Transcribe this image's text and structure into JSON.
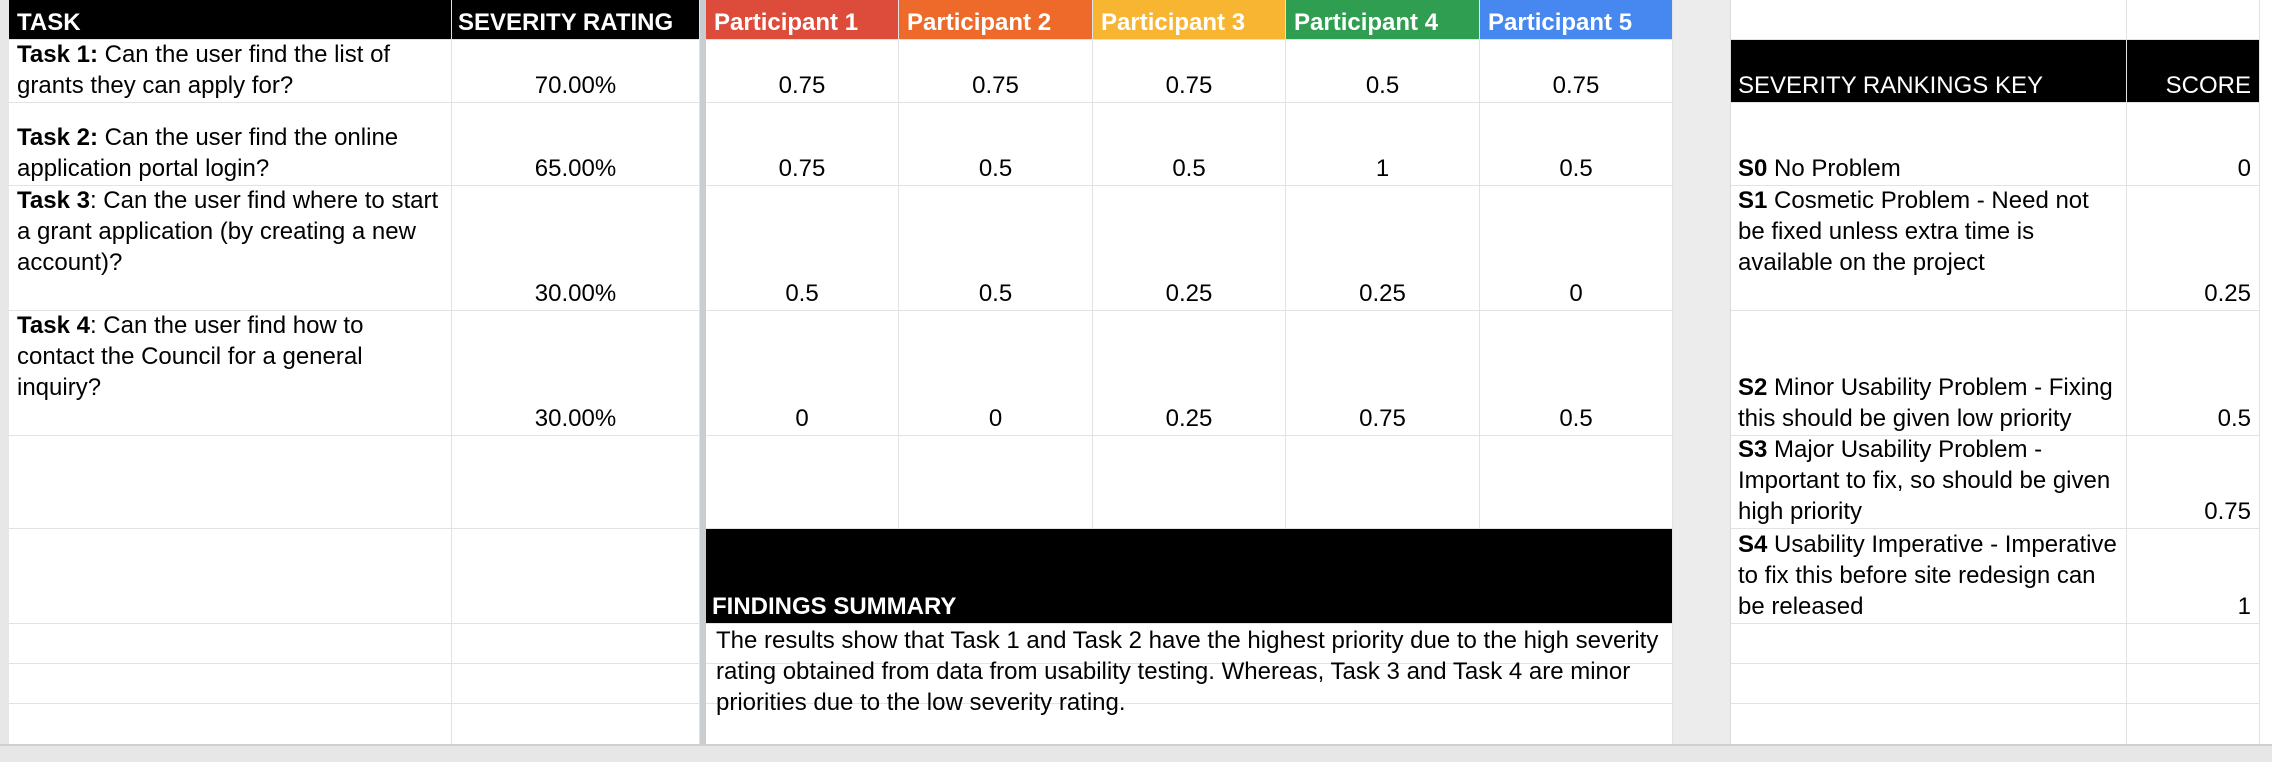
{
  "header": {
    "task": "TASK",
    "severity_rating": "SEVERITY RATING",
    "participants": [
      "Participant 1",
      "Participant 2",
      "Participant 3",
      "Participant 4",
      "Participant 5"
    ],
    "participant_colors": [
      "#dd4b3a",
      "#ee6a2b",
      "#f7b532",
      "#2f9e51",
      "#4787f0"
    ]
  },
  "tasks": [
    {
      "label": "Task 1:",
      "text": " Can the user find the list of grants they can apply for?",
      "rating": "70.00%",
      "scores": [
        "0.75",
        "0.75",
        "0.75",
        "0.5",
        "0.75"
      ]
    },
    {
      "label": "Task 2:",
      "text": " Can the user find the online application portal login?",
      "rating": "65.00%",
      "scores": [
        "0.75",
        "0.5",
        "0.5",
        "1",
        "0.5"
      ]
    },
    {
      "label": "Task 3",
      "text": ": Can the user find where to start a grant application (by creating a new account)?",
      "rating": "30.00%",
      "scores": [
        "0.5",
        "0.5",
        "0.25",
        "0.25",
        "0"
      ]
    },
    {
      "label": "Task 4",
      "text": ": Can the user find how to contact the Council for a general inquiry?",
      "rating": "30.00%",
      "scores": [
        "0",
        "0",
        "0.25",
        "0.75",
        "0.5"
      ]
    }
  ],
  "key": {
    "title": "SEVERITY RANKINGS KEY",
    "score_header": "SCORE",
    "rows": [
      {
        "code": "S0",
        "text": " No Problem",
        "score": "0"
      },
      {
        "code": "S1",
        "text": " Cosmetic Problem - Need not be fixed unless extra time is available on the project",
        "score": "0.25"
      },
      {
        "code": "S2",
        "text": " Minor Usability Problem - Fixing this should be given low priority",
        "score": "0.5"
      },
      {
        "code": "S3",
        "text": " Major Usability Problem - Important to fix, so should be given high priority",
        "score": "0.75"
      },
      {
        "code": "S4",
        "text": " Usability Imperative - Imperative to fix this before site redesign can be released",
        "score": "1"
      }
    ]
  },
  "findings": {
    "title": "FINDINGS SUMMARY",
    "text": "The results show that Task 1 and Task 2 have the highest priority due to the high severity rating obtained from data from usability testing. Whereas, Task 3 and Task 4 are minor priorities due to the low severity rating."
  }
}
